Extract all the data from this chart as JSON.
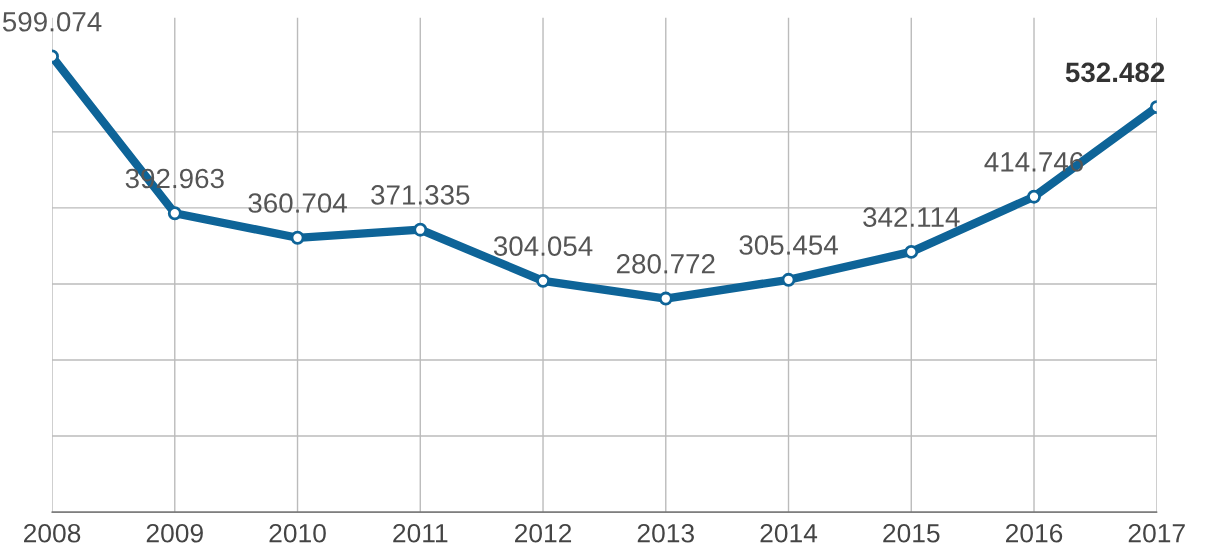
{
  "chart_data": {
    "type": "line",
    "categories": [
      "2008",
      "2009",
      "2010",
      "2011",
      "2012",
      "2013",
      "2014",
      "2015",
      "2016",
      "2017"
    ],
    "values": [
      599.074,
      392.963,
      360.704,
      371.335,
      304.054,
      280.772,
      305.454,
      342.114,
      414.746,
      532.482
    ],
    "color": "#0e6498",
    "ylim": [
      0,
      650
    ],
    "yticks": [
      {
        "value": 0,
        "label": null
      },
      {
        "value": 100,
        "label": null
      },
      {
        "value": 200,
        "label": null
      },
      {
        "value": 300,
        "label": null
      },
      {
        "value": 400,
        "label": null
      },
      {
        "value": 500,
        "label": null
      }
    ],
    "tick_labels": "x",
    "grid": true,
    "marker": "circle",
    "line_style": "solid",
    "data_labels": true
  }
}
